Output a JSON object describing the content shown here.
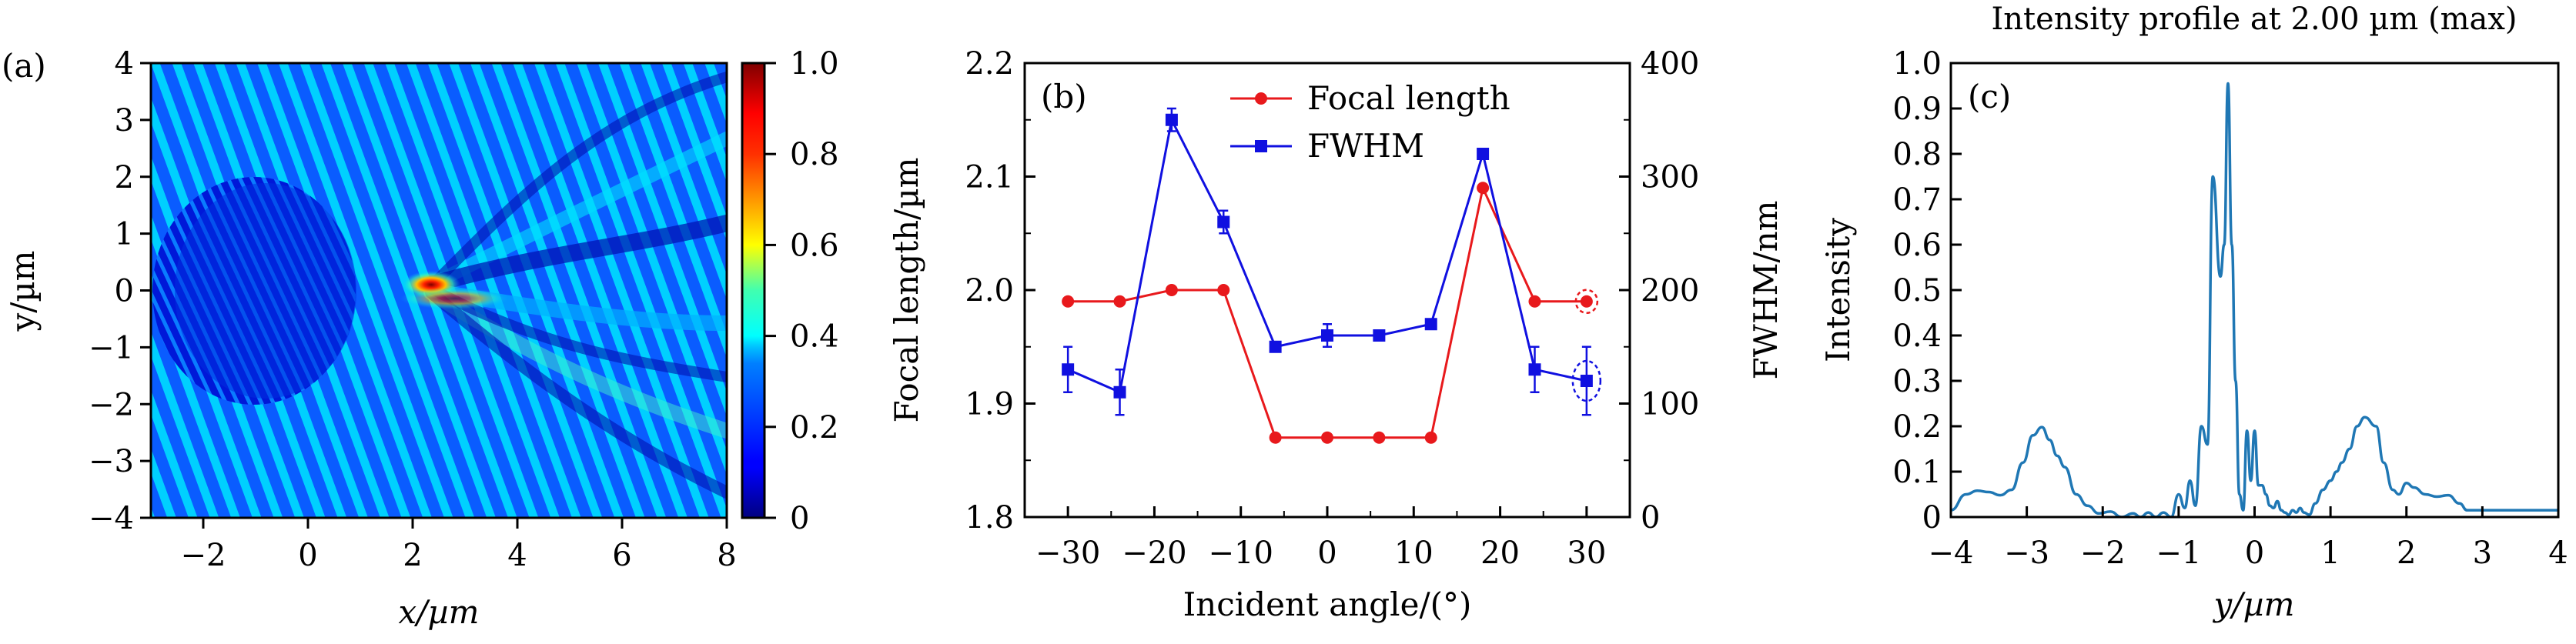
{
  "chart_data": [
    {
      "id": "a",
      "type": "heatmap",
      "panel_label": "(a)",
      "title": "",
      "xlabel": "x/µm",
      "ylabel": "y/µm",
      "xlim": [
        -3,
        8
      ],
      "ylim": [
        -4,
        4
      ],
      "xticks": [
        -2,
        0,
        2,
        4,
        6,
        8
      ],
      "xtick_labels": [
        "−2",
        "0",
        "2",
        "4",
        "6",
        "8"
      ],
      "yticks": [
        -4,
        -3,
        -2,
        -1,
        0,
        1,
        2,
        3,
        4
      ],
      "ytick_labels": [
        "−4",
        "−3",
        "−2",
        "−1",
        "0",
        "1",
        "2",
        "3",
        "4"
      ],
      "colormap": "jet",
      "colorbar": {
        "range": [
          0,
          1.0
        ],
        "ticks": [
          0,
          0.2,
          0.4,
          0.6,
          0.8,
          1.0
        ],
        "tick_labels": [
          "0",
          "0.2",
          "0.4",
          "0.6",
          "0.8",
          "1.0"
        ]
      },
      "features": {
        "lens_center": [
          0,
          0
        ],
        "lens_radius_um": 2.1,
        "focal_spot": [
          2.1,
          0.1
        ],
        "focal_spot_intensity": 1.0,
        "background_intensity": 0.25
      }
    },
    {
      "id": "b",
      "type": "line",
      "panel_label": "(b)",
      "title": "",
      "xlabel": "Incident angle/(°)",
      "ylabel": "Focal length/µm",
      "ylabel_right": "FWHM/nm",
      "xlim": [
        -35,
        35
      ],
      "ylim": [
        1.8,
        2.2
      ],
      "ylim_right": [
        0,
        400
      ],
      "xticks": [
        -30,
        -20,
        -10,
        0,
        10,
        20,
        30
      ],
      "xtick_labels": [
        "−30",
        "−20",
        "−10",
        "0",
        "10",
        "20",
        "30"
      ],
      "yticks": [
        1.8,
        1.9,
        2.0,
        2.1,
        2.2
      ],
      "ytick_labels": [
        "1.8",
        "1.9",
        "2.0",
        "2.1",
        "2.2"
      ],
      "yticks_right": [
        0,
        100,
        200,
        300,
        400
      ],
      "ytick_labels_right": [
        "0",
        "100",
        "200",
        "300",
        "400"
      ],
      "legend_position": "top-center",
      "x": [
        -30,
        -24,
        -18,
        -12,
        -6,
        0,
        6,
        12,
        18,
        24,
        30
      ],
      "series": [
        {
          "name": "Focal length",
          "axis": "left",
          "color": "#e8191c",
          "marker": "circle",
          "values": [
            1.99,
            1.99,
            2.0,
            2.0,
            1.87,
            1.87,
            1.87,
            1.87,
            2.09,
            1.99,
            1.99
          ]
        },
        {
          "name": "FWHM",
          "axis": "right",
          "color": "#1010e0",
          "marker": "square",
          "values": [
            130,
            110,
            350,
            260,
            150,
            160,
            160,
            170,
            320,
            130,
            120
          ],
          "error": [
            20,
            20,
            10,
            10,
            0,
            10,
            0,
            0,
            0,
            20,
            30
          ]
        }
      ],
      "highlighted_points": [
        {
          "series": "Focal length",
          "x": 30
        },
        {
          "series": "FWHM",
          "x": 30
        }
      ]
    },
    {
      "id": "c",
      "type": "line",
      "panel_label": "(c)",
      "title": "Intensity profile at 2.00 µm (max)",
      "xlabel": "y/µm",
      "ylabel": "Intensity",
      "xlim": [
        -4,
        4
      ],
      "ylim": [
        0,
        1.0
      ],
      "xticks": [
        -4,
        -3,
        -2,
        -1,
        0,
        1,
        2,
        3,
        4
      ],
      "xtick_labels": [
        "−4",
        "−3",
        "−2",
        "−1",
        "0",
        "1",
        "2",
        "3",
        "4"
      ],
      "yticks": [
        0,
        0.1,
        0.2,
        0.3,
        0.4,
        0.5,
        0.6,
        0.7,
        0.8,
        0.9,
        1.0
      ],
      "ytick_labels": [
        "0",
        "0.1",
        "0.2",
        "0.3",
        "0.4",
        "0.5",
        "0.6",
        "0.7",
        "0.8",
        "0.9",
        "1.0"
      ],
      "series": [
        {
          "name": "Intensity",
          "color": "#1f77b4",
          "x": [
            -4.0,
            -3.8,
            -3.65,
            -3.5,
            -3.35,
            -3.2,
            -3.05,
            -2.92,
            -2.8,
            -2.7,
            -2.6,
            -2.5,
            -2.35,
            -2.2,
            -2.05,
            -1.9,
            -1.75,
            -1.6,
            -1.5,
            -1.4,
            -1.3,
            -1.2,
            -1.1,
            -1.0,
            -0.92,
            -0.85,
            -0.78,
            -0.7,
            -0.62,
            -0.55,
            -0.45,
            -0.4,
            -0.35,
            -0.3,
            -0.25,
            -0.2,
            -0.15,
            -0.1,
            -0.05,
            0.0,
            0.05,
            0.1,
            0.15,
            0.2,
            0.25,
            0.3,
            0.35,
            0.4,
            0.45,
            0.5,
            0.55,
            0.6,
            0.65,
            0.72,
            0.8,
            0.9,
            1.0,
            1.08,
            1.15,
            1.25,
            1.35,
            1.45,
            1.6,
            1.7,
            1.82,
            1.9,
            2.0,
            2.1,
            2.25,
            2.4,
            2.55,
            2.7,
            2.8,
            2.87,
            2.95,
            3.05,
            3.15,
            3.25,
            3.4,
            3.55,
            3.7,
            3.8,
            3.9,
            4.0
          ],
          "y": [
            0.015,
            0.05,
            0.058,
            0.055,
            0.048,
            0.06,
            0.12,
            0.18,
            0.198,
            0.17,
            0.135,
            0.11,
            0.05,
            0.025,
            0.008,
            0.012,
            0.0,
            0.008,
            0.0,
            0.01,
            0.0,
            0.01,
            0.0,
            0.05,
            0.02,
            0.08,
            0.025,
            0.2,
            0.16,
            0.75,
            0.53,
            0.6,
            0.955,
            0.6,
            0.3,
            0.05,
            0.015,
            0.19,
            0.08,
            0.19,
            0.07,
            0.07,
            0.05,
            0.025,
            0.02,
            0.035,
            0.015,
            0.01,
            0.005,
            0.015,
            0.01,
            0.02,
            0.01,
            0.005,
            0.03,
            0.06,
            0.08,
            0.1,
            0.12,
            0.15,
            0.2,
            0.22,
            0.2,
            0.12,
            0.06,
            0.05,
            0.075,
            0.065,
            0.05,
            0.045,
            0.048,
            0.03,
            0.015,
            0.015,
            0.015,
            0.015,
            0.015,
            0.015,
            0.015,
            0.015,
            0.015,
            0.015,
            0.015,
            0.015
          ]
        }
      ]
    }
  ]
}
